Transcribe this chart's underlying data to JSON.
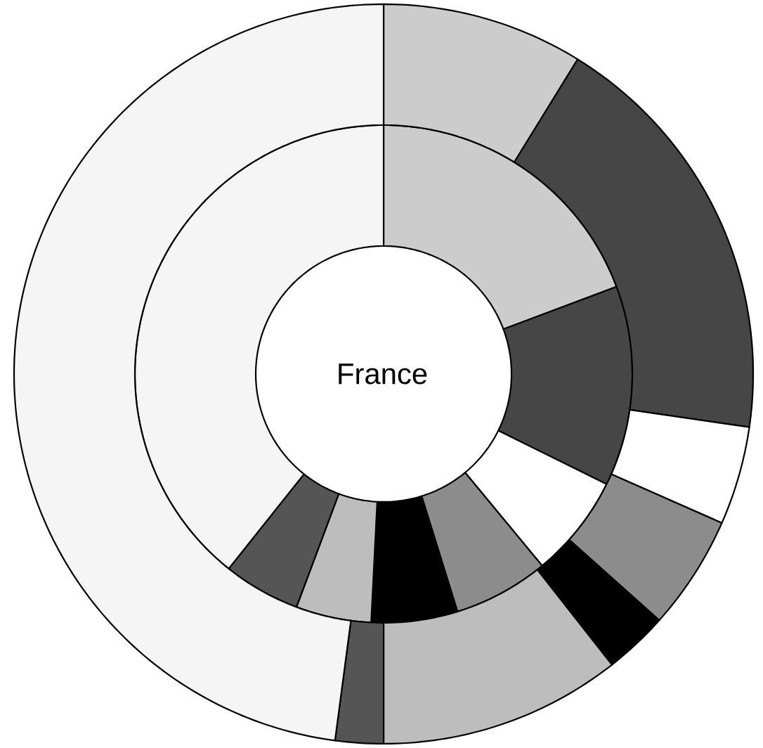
{
  "chart_data": {
    "type": "donut",
    "title": "France",
    "categories": [
      null,
      null,
      null,
      null,
      null,
      null,
      null,
      null
    ],
    "colors": [
      "#cccccc",
      "#464646",
      "#ffffff",
      "#8c8c8c",
      "#000000",
      "#bdbdbd",
      "#555555",
      "#f5f5f5"
    ],
    "series": [
      {
        "values": [
          19.3,
          13.0,
          6.7,
          6.2,
          5.6,
          4.9,
          5.0,
          39.3
        ]
      },
      {
        "values": [
          8.8,
          18.5,
          4.3,
          5.0,
          2.8,
          10.6,
          2.1,
          47.9
        ]
      }
    ]
  }
}
